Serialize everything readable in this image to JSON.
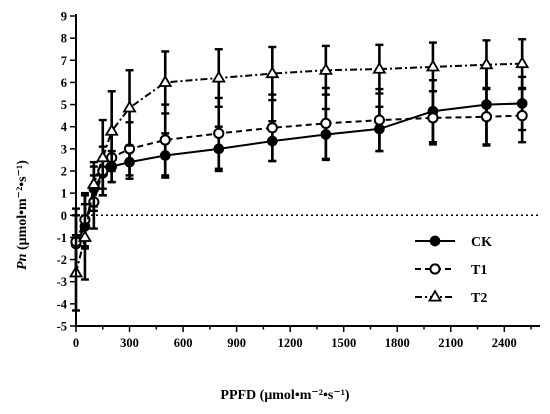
{
  "chart_data": {
    "type": "line",
    "title": "",
    "xlabel": "PPFD (μmol•m⁻²•s⁻¹)",
    "ylabel_italic": "Pn",
    "ylabel_rest": " (μmol•m⁻²•s⁻¹)",
    "xlim": [
      0,
      2600
    ],
    "ylim": [
      -5,
      9
    ],
    "xticks": [
      0,
      300,
      600,
      900,
      1200,
      1500,
      1800,
      2100,
      2400
    ],
    "yticks": [
      -5,
      -4,
      -3,
      -2,
      -1,
      0,
      1,
      2,
      3,
      4,
      5,
      6,
      7,
      8,
      9
    ],
    "reference_line": {
      "y": 0,
      "style": "dotted"
    },
    "legend_position": "lower-right",
    "x": [
      0,
      50,
      100,
      150,
      200,
      300,
      500,
      800,
      1100,
      1400,
      1700,
      2000,
      2300,
      2500
    ],
    "series": [
      {
        "name": "CK",
        "marker": "filled-circle",
        "line_style": "solid",
        "values": [
          -1.3,
          -0.5,
          1.2,
          1.9,
          2.2,
          2.4,
          2.7,
          3.0,
          3.35,
          3.65,
          3.9,
          4.7,
          5.0,
          5.05
        ],
        "errors": [
          1.3,
          1.0,
          1.0,
          0.7,
          0.7,
          0.75,
          1.0,
          1.0,
          0.9,
          1.15,
          1.0,
          1.4,
          1.8,
          1.2
        ]
      },
      {
        "name": "T1",
        "marker": "open-circle",
        "line_style": "dashed",
        "values": [
          -1.2,
          -0.2,
          0.6,
          2.0,
          2.6,
          3.0,
          3.4,
          3.7,
          3.95,
          4.15,
          4.3,
          4.4,
          4.45,
          4.5
        ],
        "errors": [
          1.5,
          1.2,
          1.2,
          1.1,
          1.1,
          1.2,
          1.6,
          1.6,
          1.5,
          1.6,
          1.4,
          1.2,
          1.3,
          1.2
        ]
      },
      {
        "name": "T2",
        "marker": "open-triangle",
        "line_style": "dash-dot",
        "values": [
          -2.6,
          -1.0,
          1.4,
          2.6,
          3.8,
          4.85,
          6.0,
          6.2,
          6.4,
          6.55,
          6.6,
          6.7,
          6.8,
          6.85
        ],
        "errors": [
          1.7,
          1.9,
          1.0,
          1.7,
          1.8,
          1.7,
          1.4,
          1.3,
          1.2,
          1.1,
          1.1,
          1.1,
          1.1,
          1.1
        ]
      }
    ]
  }
}
